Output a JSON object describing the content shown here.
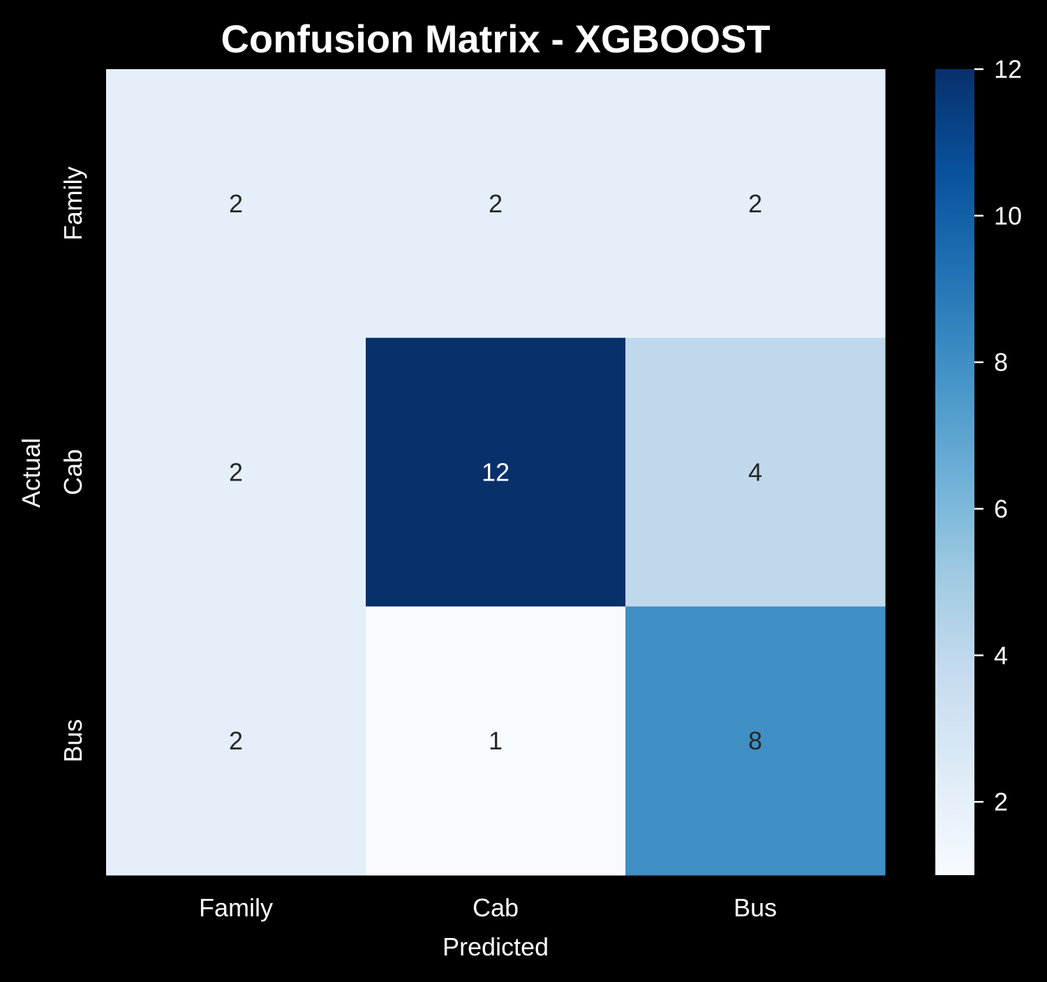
{
  "chart_data": {
    "type": "heatmap",
    "title": "Confusion Matrix - XGBOOST",
    "xlabel": "Predicted",
    "ylabel": "Actual",
    "x_categories": [
      "Family",
      "Cab",
      "Bus"
    ],
    "y_categories": [
      "Family",
      "Cab",
      "Bus"
    ],
    "values": [
      [
        2,
        2,
        2
      ],
      [
        2,
        12,
        4
      ],
      [
        2,
        1,
        8
      ]
    ],
    "colormap": "Blues",
    "colorbar": {
      "range": [
        1,
        12
      ],
      "ticks": [
        2,
        4,
        6,
        8,
        10,
        12
      ]
    },
    "annotation_colors": {
      "dark": "#262626",
      "light": "#ffffff"
    },
    "background": "#000000"
  }
}
